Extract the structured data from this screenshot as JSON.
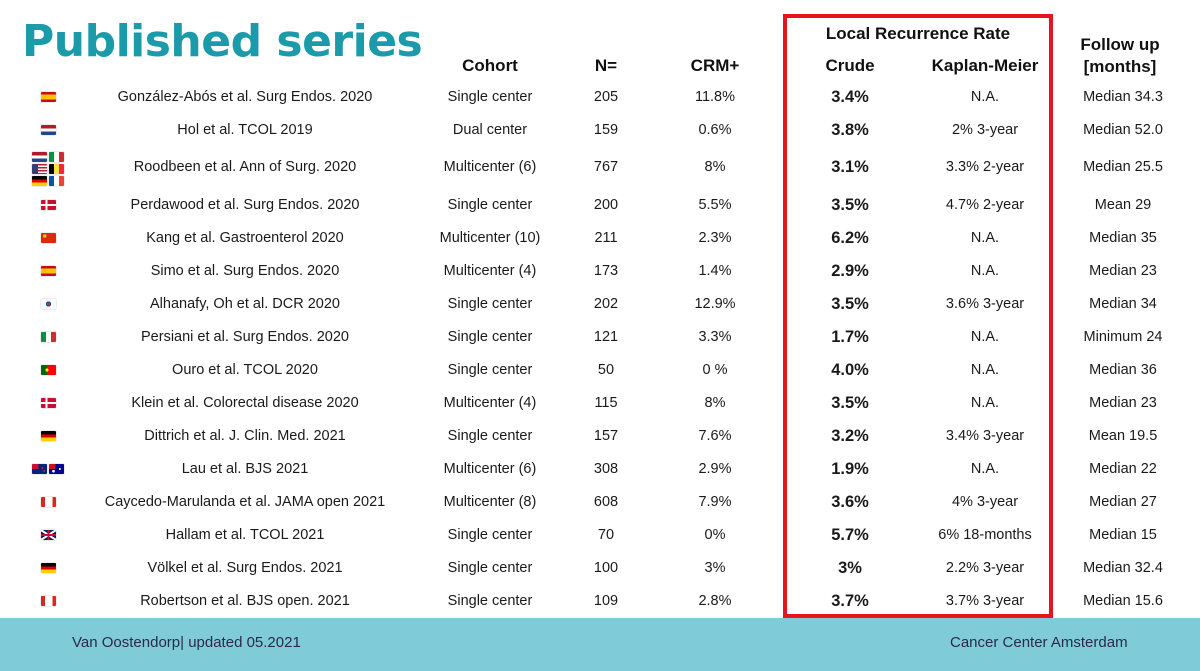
{
  "title": "Published series",
  "headers": {
    "cohort": "Cohort",
    "n": "N=",
    "crm": "CRM+",
    "lrr": "Local Recurrence Rate",
    "crude": "Crude",
    "km": "Kaplan-Meier",
    "followup_line1": "Follow up",
    "followup_line2": "[months]"
  },
  "rows": [
    {
      "flags": [
        "spain-flag"
      ],
      "study": "González-Abós et al. Surg Endos. 2020",
      "cohort": "Single center",
      "n": "205",
      "crm": "11.8%",
      "crude": "3.4%",
      "km": "N.A.",
      "followup": "Median 34.3"
    },
    {
      "flags": [
        "netherlands-flag"
      ],
      "study": "Hol et al. TCOL 2019",
      "cohort": "Dual center",
      "n": "159",
      "crm": "0.6%",
      "crude": "3.8%",
      "km": "2% 3-year",
      "followup": "Median 52.0"
    },
    {
      "flags": [
        "netherlands-flag",
        "italy-flag",
        "usa-flag",
        "belgium-flag",
        "germany-flag",
        "france-flag"
      ],
      "study": "Roodbeen et al. Ann of Surg. 2020",
      "cohort": "Multicenter (6)",
      "n": "767",
      "crm": "8%",
      "crude": "3.1%",
      "km": "3.3% 2-year",
      "followup": "Median 25.5"
    },
    {
      "flags": [
        "denmark-flag"
      ],
      "study": "Perdawood et al. Surg Endos. 2020",
      "cohort": "Single center",
      "n": "200",
      "crm": "5.5%",
      "crude": "3.5%",
      "km": "4.7% 2-year",
      "followup": "Mean 29"
    },
    {
      "flags": [
        "china-flag"
      ],
      "study": "Kang et al. Gastroenterol 2020",
      "cohort": "Multicenter (10)",
      "n": "211",
      "crm": "2.3%",
      "crude": "6.2%",
      "km": "N.A.",
      "followup": "Median 35"
    },
    {
      "flags": [
        "spain-flag"
      ],
      "study": "Simo et al. Surg Endos. 2020",
      "cohort": "Multicenter (4)",
      "n": "173",
      "crm": "1.4%",
      "crude": "2.9%",
      "km": "N.A.",
      "followup": "Median 23"
    },
    {
      "flags": [
        "korea-flag"
      ],
      "study": "Alhanafy, Oh et al. DCR 2020",
      "cohort": "Single center",
      "n": "202",
      "crm": "12.9%",
      "crude": "3.5%",
      "km": "3.6% 3-year",
      "followup": "Median 34"
    },
    {
      "flags": [
        "italy-flag"
      ],
      "study": "Persiani et al. Surg Endos. 2020",
      "cohort": "Single center",
      "n": "121",
      "crm": "3.3%",
      "crude": "1.7%",
      "km": "N.A.",
      "followup": "Minimum  24"
    },
    {
      "flags": [
        "portugal-flag"
      ],
      "study": "Ouro et al. TCOL 2020",
      "cohort": "Single center",
      "n": "50",
      "crm": "0 %",
      "crude": "4.0%",
      "km": "N.A.",
      "followup": "Median 36"
    },
    {
      "flags": [
        "denmark-flag"
      ],
      "study": "Klein et al. Colorectal disease 2020",
      "cohort": "Multicenter (4)",
      "n": "115",
      "crm": "8%",
      "crude": "3.5%",
      "km": "N.A.",
      "followup": "Median 23"
    },
    {
      "flags": [
        "germany-flag"
      ],
      "study": "Dittrich et al. J. Clin. Med. 2021",
      "cohort": "Single center",
      "n": "157",
      "crm": "7.6%",
      "crude": "3.2%",
      "km": "3.4% 3-year",
      "followup": "Mean 19.5"
    },
    {
      "flags": [
        "new-zealand-flag",
        "australia-flag"
      ],
      "study": "Lau et al. BJS 2021",
      "cohort": "Multicenter (6)",
      "n": "308",
      "crm": "2.9%",
      "crude": "1.9%",
      "km": "N.A.",
      "followup": "Median 22"
    },
    {
      "flags": [
        "canada-flag"
      ],
      "study": "Caycedo-Marulanda et al. JAMA open 2021",
      "cohort": "Multicenter (8)",
      "n": "608",
      "crm": "7.9%",
      "crude": "3.6%",
      "km": "4% 3-year",
      "followup": "Median 27"
    },
    {
      "flags": [
        "uk-flag"
      ],
      "study": "Hallam et al. TCOL 2021",
      "cohort": "Single center",
      "n": "70",
      "crm": "0%",
      "crude": "5.7%",
      "km": "6% 18-months",
      "followup": "Median 15"
    },
    {
      "flags": [
        "germany-flag"
      ],
      "study": "Völkel et al. Surg Endos. 2021",
      "cohort": "Single center",
      "n": "100",
      "crm": "3%",
      "crude": "3%",
      "km": "2.2% 3-year",
      "followup": "Median 32.4"
    },
    {
      "flags": [
        "canada-flag"
      ],
      "study": "Robertson et al. BJS open. 2021",
      "cohort": "Single center",
      "n": "109",
      "crm": "2.8%",
      "crude": "3.7%",
      "km": "3.7% 3-year",
      "followup": "Median 15.6"
    }
  ],
  "footer": {
    "left": "Van Oostendorp| updated 05.2021",
    "right": "Cancer Center Amsterdam"
  },
  "colors": {
    "title": "#1b9aaa",
    "highlight_box": "#e8141b",
    "footer_bg": "#7fccd8"
  }
}
